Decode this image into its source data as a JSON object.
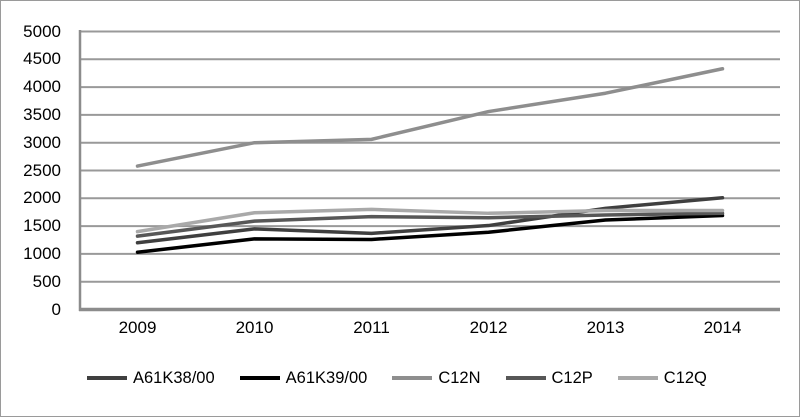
{
  "chart_data": {
    "type": "line",
    "title": "",
    "xlabel": "",
    "ylabel": "",
    "categories": [
      "2009",
      "2010",
      "2011",
      "2012",
      "2013",
      "2014"
    ],
    "series": [
      {
        "name": "A61K38/00",
        "color": "#3f3f3f",
        "values": [
          1200,
          1450,
          1370,
          1510,
          1820,
          2010
        ]
      },
      {
        "name": "A61K39/00",
        "color": "#000000",
        "values": [
          1030,
          1270,
          1260,
          1390,
          1610,
          1690
        ]
      },
      {
        "name": "C12N",
        "color": "#8e8e8e",
        "values": [
          2580,
          3000,
          3060,
          3560,
          3890,
          4330
        ]
      },
      {
        "name": "C12P",
        "color": "#575757",
        "values": [
          1320,
          1590,
          1670,
          1650,
          1700,
          1730
        ]
      },
      {
        "name": "C12Q",
        "color": "#a9a9a9",
        "values": [
          1400,
          1740,
          1800,
          1730,
          1780,
          1780
        ]
      }
    ],
    "ylim": [
      0,
      5000
    ],
    "ytick_step": 500,
    "y_ticks": [
      "5000",
      "4500",
      "4000",
      "3500",
      "3000",
      "2500",
      "2000",
      "1500",
      "1000",
      "500",
      "0"
    ],
    "grid": true,
    "grid_color": "#999999",
    "axis_color": "#8c8c8c",
    "legend_position": "bottom"
  }
}
